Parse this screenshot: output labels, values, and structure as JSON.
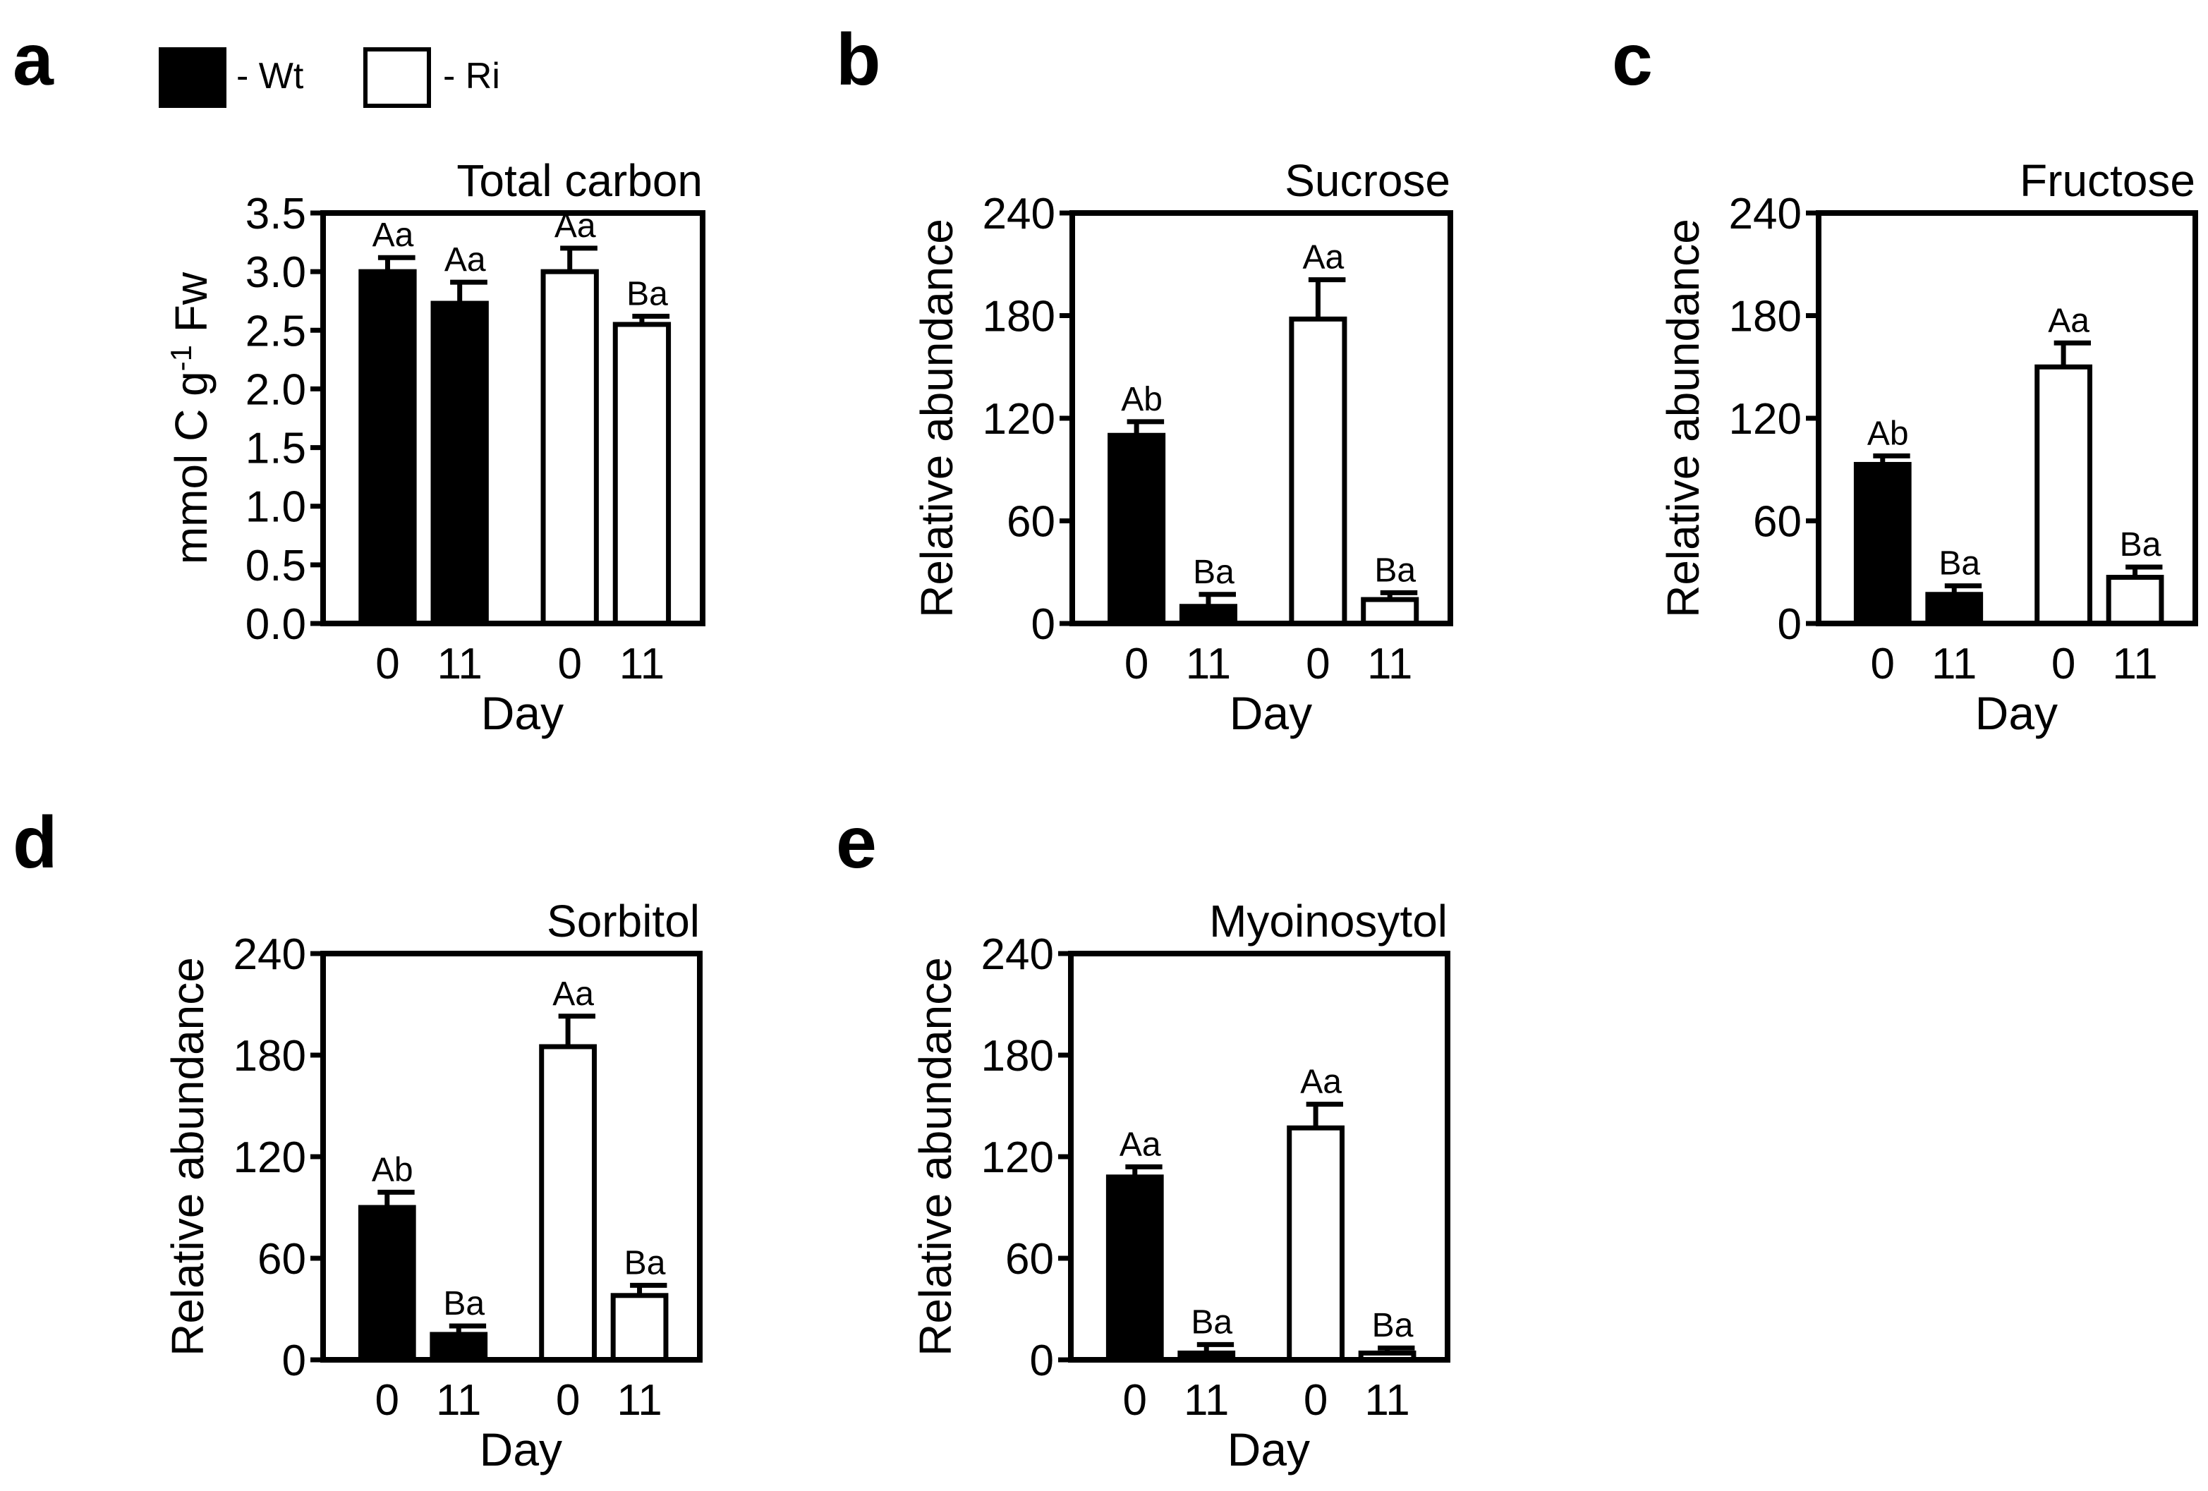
{
  "legend": [
    {
      "label": "- Wt",
      "fill": "#000000"
    },
    {
      "label": "- Ri",
      "fill": "#ffffff"
    }
  ],
  "colors": {
    "wt": "#000000",
    "ri": "#ffffff",
    "stroke": "#000000"
  },
  "chart_data": [
    {
      "panel": "a",
      "type": "bar",
      "title": "Total carbon",
      "xlabel": "Day",
      "ylabel": "mmol C g-1 Fw",
      "categories": [
        "0",
        "11",
        "0",
        "11"
      ],
      "groups": [
        "Wt",
        "Wt",
        "Ri",
        "Ri"
      ],
      "values": [
        3.0,
        2.73,
        3.0,
        2.55
      ],
      "errors": [
        0.12,
        0.18,
        0.2,
        0.07
      ],
      "labels": [
        "Aa",
        "Aa",
        "Aa",
        "Ba"
      ],
      "ylim": [
        0,
        3.5
      ],
      "yticks": [
        "0.0",
        "0.5",
        "1.0",
        "1.5",
        "2.0",
        "2.5",
        "3.0",
        "3.5"
      ]
    },
    {
      "panel": "b",
      "type": "bar",
      "title": "Sucrose",
      "xlabel": "Day",
      "ylabel": "Relative abundance",
      "categories": [
        "0",
        "11",
        "0",
        "11"
      ],
      "groups": [
        "Wt",
        "Wt",
        "Ri",
        "Ri"
      ],
      "values": [
        110,
        10,
        178,
        14
      ],
      "errors": [
        8,
        7,
        23,
        4
      ],
      "labels": [
        "Ab",
        "Ba",
        "Aa",
        "Ba"
      ],
      "ylim": [
        0,
        240
      ],
      "yticks": [
        "0",
        "60",
        "120",
        "180",
        "240"
      ]
    },
    {
      "panel": "c",
      "type": "bar",
      "title": "Fructose",
      "xlabel": "Day",
      "ylabel": "Relative abundance",
      "categories": [
        "0",
        "11",
        "0",
        "11"
      ],
      "groups": [
        "Wt",
        "Wt",
        "Ri",
        "Ri"
      ],
      "values": [
        93,
        17,
        150,
        27
      ],
      "errors": [
        5,
        5,
        14,
        6
      ],
      "labels": [
        "Ab",
        "Ba",
        "Aa",
        "Ba"
      ],
      "ylim": [
        0,
        240
      ],
      "yticks": [
        "0",
        "60",
        "120",
        "180",
        "240"
      ]
    },
    {
      "panel": "d",
      "type": "bar",
      "title": "Sorbitol",
      "xlabel": "Day",
      "ylabel": "Relative abundance",
      "categories": [
        "0",
        "11",
        "0",
        "11"
      ],
      "groups": [
        "Wt",
        "Wt",
        "Ri",
        "Ri"
      ],
      "values": [
        90,
        15,
        185,
        38
      ],
      "errors": [
        9,
        5,
        18,
        6
      ],
      "labels": [
        "Ab",
        "Ba",
        "Aa",
        "Ba"
      ],
      "ylim": [
        0,
        240
      ],
      "yticks": [
        "0",
        "60",
        "120",
        "180",
        "240"
      ]
    },
    {
      "panel": "e",
      "type": "bar",
      "title": "Myoinosytol",
      "xlabel": "Day",
      "ylabel": "Relative abundance",
      "categories": [
        "0",
        "11",
        "0",
        "11"
      ],
      "groups": [
        "Wt",
        "Wt",
        "Ri",
        "Ri"
      ],
      "values": [
        108,
        4,
        137,
        4
      ],
      "errors": [
        6,
        5,
        14,
        3
      ],
      "labels": [
        "Aa",
        "Ba",
        "Aa",
        "Ba"
      ],
      "ylim": [
        0,
        240
      ],
      "yticks": [
        "0",
        "60",
        "120",
        "180",
        "240"
      ]
    }
  ]
}
